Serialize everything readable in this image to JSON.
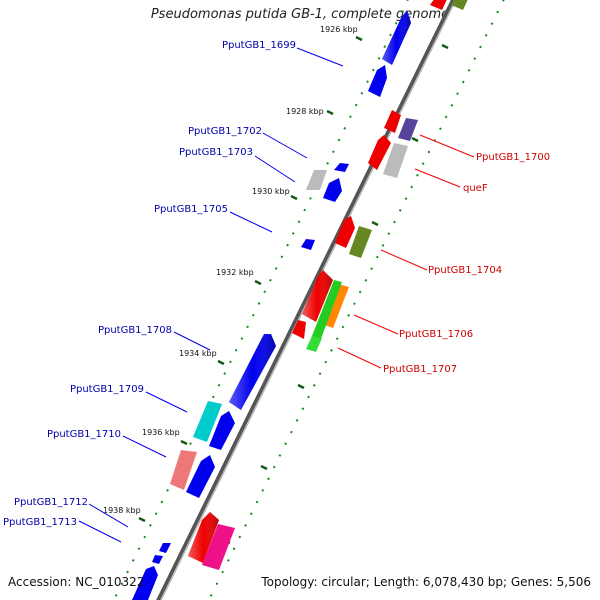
{
  "title": "Pseudomonas putida GB-1, complete genome",
  "footer": {
    "accession": "Accession: NC_010322",
    "topology": "Topology: circular; Length: 6,078,430 bp; Genes: 5,506"
  },
  "ruler": [
    {
      "label": "1926 kbp"
    },
    {
      "label": "1928 kbp"
    },
    {
      "label": "1930 kbp"
    },
    {
      "label": "1932 kbp"
    },
    {
      "label": "1934 kbp"
    },
    {
      "label": "1936 kbp"
    },
    {
      "label": "1938 kbp"
    }
  ],
  "gene_labels_left": [
    {
      "name": "PputGB1_1699"
    },
    {
      "name": "PputGB1_1702"
    },
    {
      "name": "PputGB1_1703"
    },
    {
      "name": "PputGB1_1705"
    },
    {
      "name": "PputGB1_1708"
    },
    {
      "name": "PputGB1_1709"
    },
    {
      "name": "PputGB1_1710"
    },
    {
      "name": "PputGB1_1712"
    },
    {
      "name": "PputGB1_1713"
    }
  ],
  "gene_labels_right": [
    {
      "name": "PputGB1_1700"
    },
    {
      "name": "queF"
    },
    {
      "name": "PputGB1_1704"
    },
    {
      "name": "PputGB1_1706"
    },
    {
      "name": "PputGB1_1707"
    }
  ],
  "colors": {
    "minus_strand_gene": "#0000ee",
    "plus_strand_gene": "#ee0000",
    "left_label": "#0000aa",
    "right_label": "#cc0000",
    "backbone": "#777777",
    "ticks": "#1a8a1a"
  }
}
